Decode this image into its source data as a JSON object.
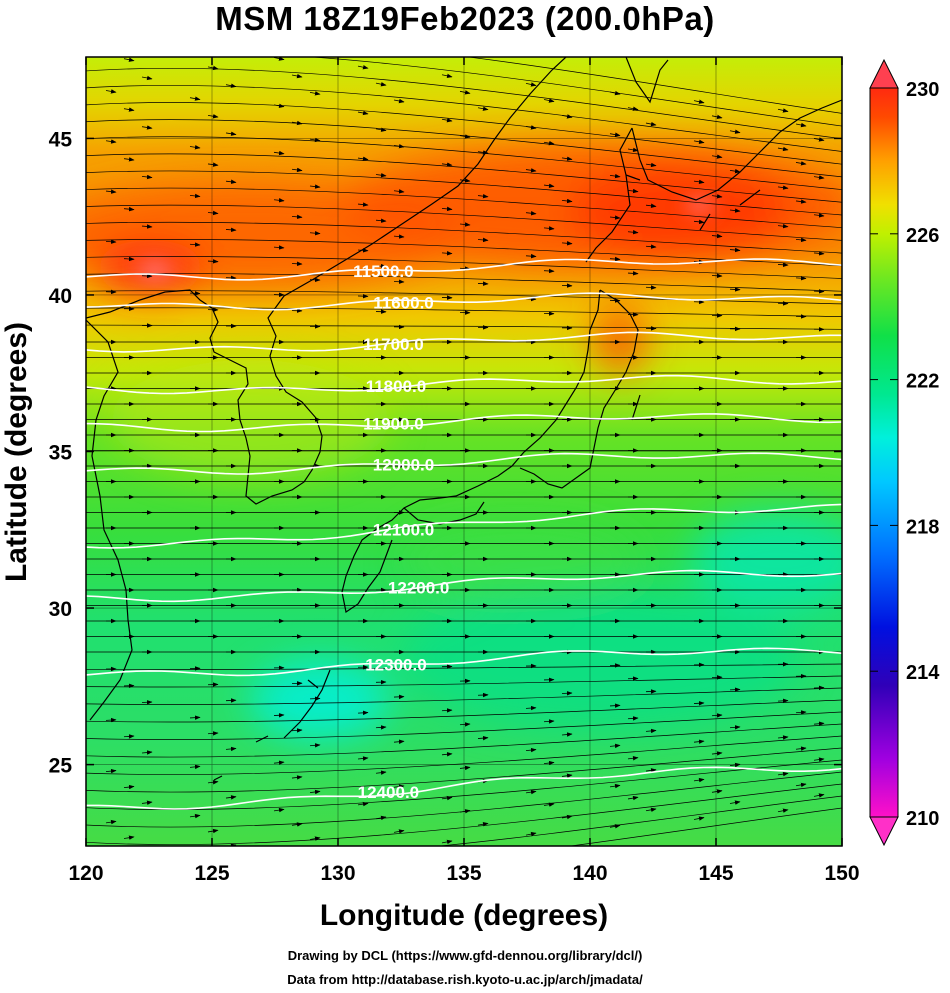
{
  "title": "MSM 18Z19Feb2023 (200.0hPa)",
  "footer": {
    "line1": "Drawing by DCL (https://www.gfd-dennou.org/library/dcl/)",
    "line2": "Data from http://database.rish.kyoto-u.ac.jp/arch/jmadata/"
  },
  "map": {
    "xlabel": "Longitude (degrees)",
    "ylabel": "Latitude  (degrees)",
    "lon_range": [
      120,
      150
    ],
    "lat_range": [
      22.4,
      47.6
    ],
    "lon_ticks": [
      "120",
      "125",
      "130",
      "135",
      "140",
      "145",
      "150"
    ],
    "lat_ticks": [
      "25",
      "30",
      "35",
      "40",
      "45"
    ],
    "grid": true,
    "field": "temperature (K) shaded, geopotential height (m) contours, wind streamlines",
    "height_contours": [
      {
        "label": "11500.0",
        "label_lon": 131.8,
        "lat_west": 40.6,
        "lat_east": 41.1
      },
      {
        "label": "11600.0",
        "label_lon": 132.6,
        "lat_west": 39.7,
        "lat_east": 39.9
      },
      {
        "label": "11700.0",
        "label_lon": 132.2,
        "lat_west": 38.3,
        "lat_east": 38.7
      },
      {
        "label": "11800.0",
        "label_lon": 132.3,
        "lat_west": 37.0,
        "lat_east": 37.3
      },
      {
        "label": "11900.0",
        "label_lon": 132.2,
        "lat_west": 35.8,
        "lat_east": 36.1
      },
      {
        "label": "12000.0",
        "label_lon": 132.6,
        "lat_west": 34.4,
        "lat_east": 34.9
      },
      {
        "label": "12100.0",
        "label_lon": 132.6,
        "lat_west": 32.0,
        "lat_east": 33.3
      },
      {
        "label": "12200.0",
        "label_lon": 133.2,
        "lat_west": 30.3,
        "lat_east": 31.2
      },
      {
        "label": "12300.0",
        "label_lon": 132.3,
        "lat_west": 27.9,
        "lat_east": 28.7
      },
      {
        "label": "12400.0",
        "label_lon": 132.0,
        "lat_west": 23.6,
        "lat_east": 25.0
      }
    ],
    "colorbar": {
      "ticks": [
        "230",
        "226",
        "222",
        "218",
        "214",
        "210"
      ],
      "range": [
        210,
        230
      ],
      "colors": [
        "#ff00cc",
        "#b000e0",
        "#6a00c8",
        "#2a00b8",
        "#0010e0",
        "#0050ff",
        "#0090ff",
        "#00c8ff",
        "#00f0e0",
        "#00e8a0",
        "#00e070",
        "#20e040",
        "#60e820",
        "#a0ee10",
        "#d8f000",
        "#f0e000",
        "#f8c000",
        "#ff9800",
        "#ff6600",
        "#ff3000"
      ]
    }
  }
}
